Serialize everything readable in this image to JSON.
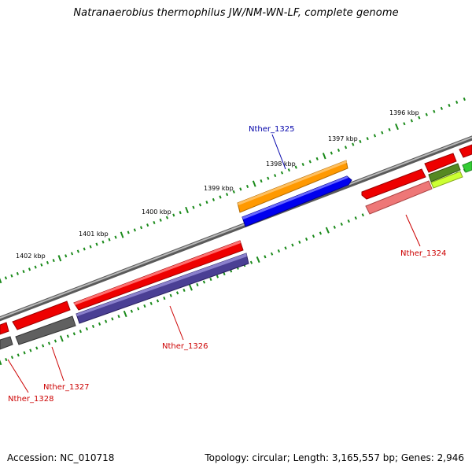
{
  "title": "Natranaerobius thermophilus JW/NM-WN-LF, complete genome",
  "footer": {
    "accession": "Accession: NC_010718",
    "summary": "Topology: circular; Length: 3,165,557 bp; Genes: 2,946"
  },
  "kbp_labels": {
    "k1396": "1396 kbp",
    "k1397": "1397 kbp",
    "k1398": "1398 kbp",
    "k1399": "1399 kbp",
    "k1400": "1400 kbp",
    "k1401": "1401 kbp",
    "k1402": "1402 kbp"
  },
  "genes": {
    "nther_1324": "Nther_1324",
    "nther_1325": "Nther_1325",
    "nther_1326": "Nther_1326",
    "nther_1327": "Nther_1327",
    "nther_1328": "Nther_1328"
  },
  "colors": {
    "backbone": "#808080",
    "tick": "#1a8a1a",
    "forward_label": "#0000aa",
    "reverse_label": "#cc0000",
    "cds_red": "#ee0000",
    "cds_orange": "#ff9900",
    "cds_blue": "#0000ee",
    "cds_purple": "#4a3f94",
    "cds_gray": "#606060",
    "cds_pink": "#ee7777",
    "cds_green": "#33cc33",
    "cds_olive": "#558822",
    "cds_lime": "#ccff33"
  }
}
